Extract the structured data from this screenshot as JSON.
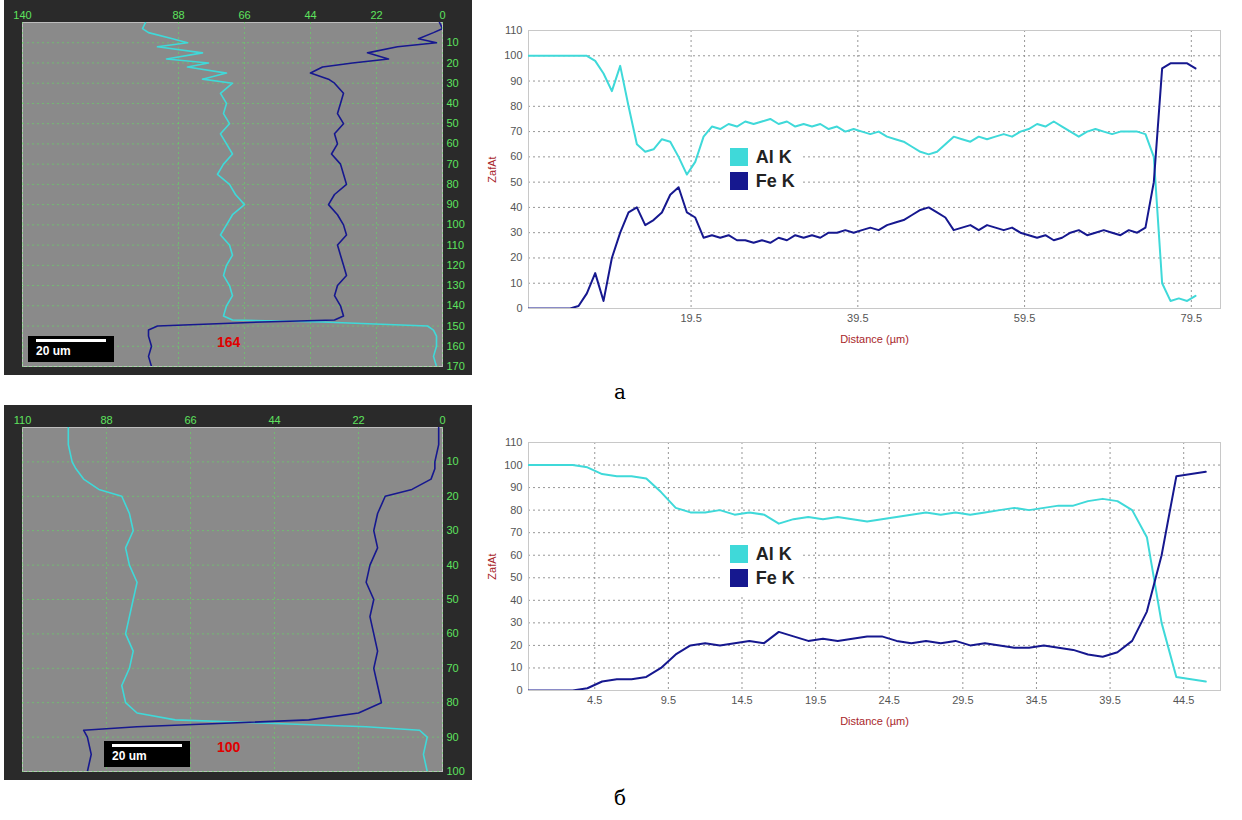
{
  "panel_labels": [
    "а",
    "б"
  ],
  "chart_data": [
    {
      "type": "line",
      "y": [
        0,
        3,
        5,
        8,
        10,
        12,
        15,
        18,
        20,
        22,
        25,
        28,
        30,
        35,
        40,
        45,
        50,
        55,
        60,
        65,
        70,
        75,
        80,
        85,
        90,
        95,
        100,
        105,
        110,
        115,
        120,
        125,
        130,
        135,
        140,
        145,
        147,
        148,
        150,
        152,
        155,
        160,
        165,
        170
      ],
      "xlim": [
        140,
        0
      ],
      "xticks": [
        140,
        88,
        66,
        44,
        22,
        0
      ],
      "ylim": [
        0,
        170
      ],
      "yticks": [
        10,
        20,
        30,
        40,
        50,
        60,
        70,
        80,
        90,
        100,
        110,
        120,
        130,
        140,
        150,
        160,
        170
      ],
      "grid": true,
      "annotations": [
        "164"
      ],
      "scale_bar": "20 um",
      "series": [
        {
          "color": "#3fd9d9",
          "values": [
            99,
            100,
            98,
            90,
            85,
            95,
            80,
            92,
            78,
            85,
            72,
            80,
            70,
            74,
            72,
            73,
            71,
            74,
            72,
            70,
            73,
            75,
            71,
            69,
            66,
            70,
            72,
            74,
            71,
            70,
            72,
            73,
            71,
            70,
            72,
            73,
            70,
            40,
            5,
            3,
            2,
            2,
            3,
            2
          ]
        },
        {
          "color": "#16188f",
          "values": [
            1,
            0,
            3,
            8,
            2,
            15,
            25,
            18,
            30,
            40,
            44,
            38,
            36,
            33,
            34,
            35,
            33,
            36,
            35,
            37,
            34,
            33,
            32,
            36,
            38,
            35,
            33,
            32,
            35,
            34,
            33,
            32,
            35,
            36,
            34,
            33,
            36,
            60,
            95,
            98,
            98,
            97,
            98,
            97
          ]
        }
      ]
    },
    {
      "type": "line",
      "x": [
        0,
        1,
        2,
        3,
        4,
        5,
        6,
        7,
        8,
        9,
        10,
        11,
        12,
        13,
        14,
        15,
        16,
        17,
        18,
        19,
        20,
        21,
        22,
        23,
        24,
        25,
        26,
        27,
        28,
        29,
        30,
        31,
        32,
        33,
        34,
        35,
        36,
        37,
        38,
        39,
        40,
        41,
        42,
        43,
        44,
        45,
        46,
        47,
        48,
        49,
        50,
        51,
        52,
        53,
        54,
        55,
        56,
        57,
        58,
        59,
        60,
        61,
        62,
        63,
        64,
        65,
        66,
        67,
        68,
        69,
        70,
        71,
        72,
        73,
        74,
        75,
        76,
        77,
        78,
        79,
        80
      ],
      "xlim": [
        0,
        83
      ],
      "xticks": [
        19.5,
        39.5,
        59.5,
        79.5
      ],
      "ylim": [
        0,
        110
      ],
      "yticks": [
        0,
        10,
        20,
        30,
        40,
        50,
        60,
        70,
        80,
        90,
        100,
        110
      ],
      "xlabel": "Distance (µm)",
      "ylabel": "ZafAt",
      "grid": true,
      "legend": "center",
      "series": [
        {
          "name": "Al K",
          "color": "#3fd9d9",
          "values": [
            100,
            100,
            100,
            100,
            100,
            100,
            100,
            100,
            98,
            93,
            86,
            96,
            80,
            65,
            62,
            63,
            67,
            66,
            60,
            53,
            58,
            68,
            72,
            71,
            73,
            72,
            74,
            73,
            74,
            75,
            73,
            74,
            72,
            73,
            72,
            73,
            71,
            72,
            70,
            71,
            70,
            69,
            70,
            68,
            67,
            66,
            64,
            62,
            61,
            62,
            65,
            68,
            67,
            66,
            68,
            67,
            68,
            69,
            68,
            70,
            71,
            73,
            72,
            74,
            72,
            70,
            68,
            70,
            71,
            70,
            69,
            70,
            70,
            70,
            69,
            60,
            10,
            3,
            4,
            3,
            5
          ]
        },
        {
          "name": "Fe K",
          "color": "#16188f",
          "values": [
            0,
            0,
            0,
            0,
            0,
            0,
            1,
            6,
            14,
            3,
            20,
            30,
            38,
            40,
            33,
            35,
            38,
            45,
            48,
            38,
            36,
            28,
            29,
            28,
            29,
            27,
            27,
            26,
            27,
            26,
            28,
            27,
            29,
            28,
            29,
            28,
            30,
            30,
            31,
            30,
            31,
            32,
            31,
            33,
            34,
            35,
            37,
            39,
            40,
            38,
            36,
            31,
            32,
            33,
            31,
            33,
            32,
            31,
            32,
            30,
            29,
            28,
            29,
            27,
            28,
            30,
            31,
            29,
            30,
            31,
            30,
            29,
            31,
            30,
            32,
            50,
            95,
            97,
            97,
            97,
            95
          ]
        }
      ]
    },
    {
      "type": "line",
      "y": [
        0,
        5,
        10,
        12,
        15,
        18,
        20,
        25,
        30,
        35,
        40,
        45,
        50,
        55,
        60,
        65,
        70,
        75,
        80,
        83,
        85,
        87,
        88,
        90,
        95,
        100
      ],
      "xlim": [
        110,
        0
      ],
      "xticks": [
        110,
        88,
        66,
        44,
        22,
        0
      ],
      "ylim": [
        0,
        100
      ],
      "yticks": [
        10,
        20,
        30,
        40,
        50,
        60,
        70,
        80,
        90,
        100
      ],
      "grid": true,
      "annotations": [
        "100"
      ],
      "scale_bar": "20 um",
      "series": [
        {
          "color": "#3fd9d9",
          "values": [
            98,
            98,
            97,
            96,
            94,
            90,
            84,
            82,
            81,
            83,
            82,
            80,
            81,
            82,
            83,
            81,
            82,
            84,
            83,
            80,
            70,
            20,
            6,
            4,
            5,
            4
          ]
        },
        {
          "color": "#16188f",
          "values": [
            1,
            1,
            2,
            2,
            3,
            8,
            15,
            17,
            18,
            17,
            19,
            20,
            18,
            19,
            18,
            17,
            18,
            17,
            16,
            22,
            35,
            80,
            94,
            93,
            92,
            93
          ]
        }
      ]
    },
    {
      "type": "line",
      "x": [
        0,
        1,
        2,
        3,
        4,
        5,
        6,
        7,
        8,
        9,
        10,
        11,
        12,
        13,
        14,
        15,
        16,
        17,
        18,
        19,
        20,
        21,
        22,
        23,
        24,
        25,
        26,
        27,
        28,
        29,
        30,
        31,
        32,
        33,
        34,
        35,
        36,
        37,
        38,
        39,
        40,
        41,
        42,
        43,
        44,
        45,
        46
      ],
      "xlim": [
        0,
        47
      ],
      "xticks": [
        4.5,
        9.5,
        14.5,
        19.5,
        24.5,
        29.5,
        34.5,
        39.5,
        44.5
      ],
      "ylim": [
        0,
        110
      ],
      "yticks": [
        0,
        10,
        20,
        30,
        40,
        50,
        60,
        70,
        80,
        90,
        100,
        110
      ],
      "xlabel": "Distance (µm)",
      "ylabel": "ZafAt",
      "grid": true,
      "legend": "center",
      "series": [
        {
          "name": "Al K",
          "color": "#3fd9d9",
          "values": [
            100,
            100,
            100,
            100,
            99,
            96,
            95,
            95,
            94,
            88,
            81,
            79,
            79,
            80,
            78,
            79,
            78,
            74,
            76,
            77,
            76,
            77,
            76,
            75,
            76,
            77,
            78,
            79,
            78,
            79,
            78,
            79,
            80,
            81,
            80,
            81,
            82,
            82,
            84,
            85,
            84,
            80,
            68,
            30,
            6,
            5,
            4
          ]
        },
        {
          "name": "Fe K",
          "color": "#16188f",
          "values": [
            0,
            0,
            0,
            0,
            1,
            4,
            5,
            5,
            6,
            10,
            16,
            20,
            21,
            20,
            21,
            22,
            21,
            26,
            24,
            22,
            23,
            22,
            23,
            24,
            24,
            22,
            21,
            22,
            21,
            22,
            20,
            21,
            20,
            19,
            19,
            20,
            19,
            18,
            16,
            15,
            17,
            22,
            35,
            60,
            95,
            96,
            97
          ]
        }
      ]
    }
  ]
}
